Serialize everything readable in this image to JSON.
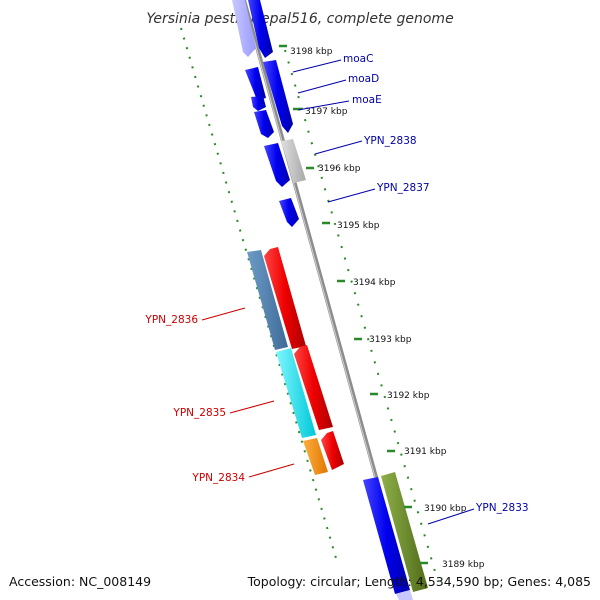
{
  "title": "Yersinia pestis Nepal516, complete genome",
  "footer": {
    "accession": "Accession: NC_008149",
    "summary": "Topology: circular; Length: 4,534,590 bp; Genes: 4,085"
  },
  "ticks": [
    "3198 kbp",
    "3197 kbp",
    "3196 kbp",
    "3195 kbp",
    "3194 kbp",
    "3193 kbp",
    "3192 kbp",
    "3191 kbp",
    "3190 kbp",
    "3189 kbp"
  ],
  "gene_labels": [
    "moaC",
    "moaD",
    "moaE",
    "YPN_2838",
    "YPN_2837",
    "YPN_2836",
    "YPN_2835",
    "YPN_2834",
    "YPN_2833"
  ],
  "colors": {
    "forward_label": "#0000aa",
    "reverse_label": "#cc0000",
    "backbone": "#8c8c8c",
    "gc_dots": "#2a8a2a",
    "blue": "#0000ee",
    "steel": "#4f81b4",
    "red": "#ee0000",
    "cyan": "#00e5ee",
    "orange": "#ff8c00",
    "gray": "#bdbdbd",
    "olive": "#6b8e23"
  }
}
